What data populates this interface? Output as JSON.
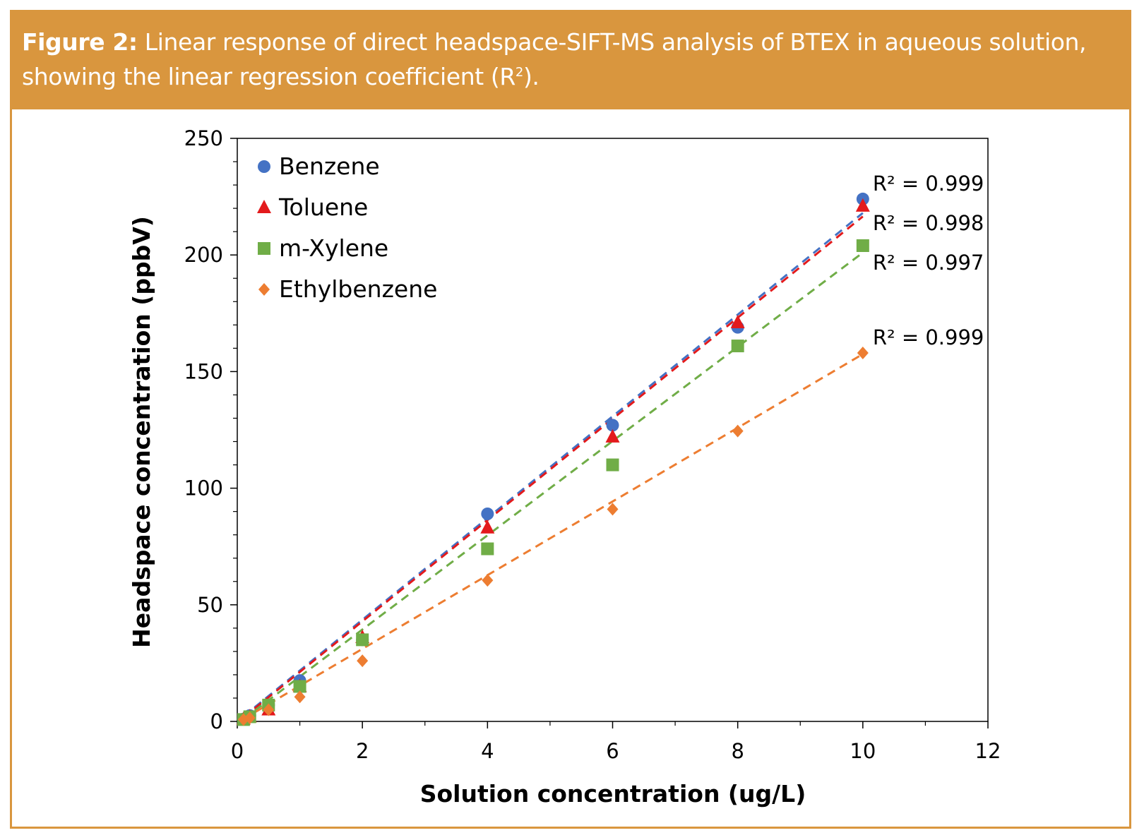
{
  "caption": {
    "label": "Figure 2:",
    "text_before_sup": "Linear response of direct headspace-SIFT-MS analysis of BTEX in aqueous solution, showing the linear regression coefficient (R",
    "sup": "2",
    "text_after_sup": ")."
  },
  "colors": {
    "frame": "#d9963e",
    "caption_text": "#ffffff",
    "benzene": "#4472c4",
    "toluene": "#e31a1c",
    "m_xylene": "#70ad47",
    "ethylbenzene": "#ed7d31"
  },
  "chart_data": {
    "type": "scatter",
    "title": "",
    "xlabel": "Solution concentration (ug/L)",
    "ylabel": "Headspace concentration (ppbV)",
    "xlim": [
      0,
      12
    ],
    "ylim": [
      0,
      250
    ],
    "x_ticks": [
      "0",
      "2",
      "4",
      "6",
      "8",
      "10",
      "12"
    ],
    "y_ticks": [
      "0",
      "50",
      "100",
      "150",
      "200",
      "250"
    ],
    "grid": false,
    "legend_position": "top-left",
    "series": [
      {
        "name": "Benzene",
        "marker": "circle",
        "color": "#4472c4",
        "points": [
          [
            0.1,
            1
          ],
          [
            0.2,
            2.5
          ],
          [
            0.5,
            7
          ],
          [
            1,
            17.5
          ],
          [
            2,
            35
          ],
          [
            4,
            89
          ],
          [
            6,
            127
          ],
          [
            8,
            169
          ],
          [
            10,
            224
          ]
        ],
        "trendline": {
          "style": "dashed",
          "slope": 21.8,
          "intercept": 0,
          "x_range": [
            0.1,
            10
          ]
        },
        "r2_label": "R² = 0.999"
      },
      {
        "name": "Toluene",
        "marker": "triangle",
        "color": "#e31a1c",
        "points": [
          [
            0.1,
            1
          ],
          [
            0.2,
            2
          ],
          [
            0.5,
            5
          ],
          [
            1,
            15
          ],
          [
            2,
            36
          ],
          [
            4,
            83
          ],
          [
            6,
            122
          ],
          [
            8,
            171
          ],
          [
            10,
            221
          ]
        ],
        "trendline": {
          "style": "dashed",
          "slope": 21.7,
          "intercept": -0.5,
          "x_range": [
            0.1,
            10
          ]
        },
        "r2_label": "R² = 0.998"
      },
      {
        "name": "m-Xylene",
        "marker": "square",
        "color": "#70ad47",
        "points": [
          [
            0.1,
            0.8
          ],
          [
            0.2,
            2
          ],
          [
            0.5,
            7
          ],
          [
            1,
            15
          ],
          [
            2,
            35
          ],
          [
            4,
            74
          ],
          [
            6,
            110
          ],
          [
            8,
            161
          ],
          [
            10,
            204
          ]
        ],
        "trendline": {
          "style": "dashed",
          "slope": 20.2,
          "intercept": -1.0,
          "x_range": [
            0.1,
            10
          ]
        },
        "r2_label": "R² = 0.997"
      },
      {
        "name": "Ethylbenzene",
        "marker": "diamond",
        "color": "#ed7d31",
        "points": [
          [
            0.1,
            0.8
          ],
          [
            0.2,
            1.5
          ],
          [
            0.5,
            5
          ],
          [
            1,
            10.5
          ],
          [
            2,
            26
          ],
          [
            4,
            60.5
          ],
          [
            6,
            91
          ],
          [
            8,
            124.5
          ],
          [
            10,
            158
          ]
        ],
        "trendline": {
          "style": "dashed",
          "slope": 15.8,
          "intercept": -0.5,
          "x_range": [
            0.1,
            10
          ]
        },
        "r2_label": "R² = 0.999"
      }
    ]
  }
}
